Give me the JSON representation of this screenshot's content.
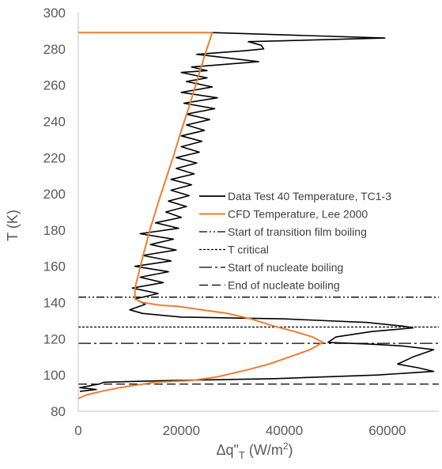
{
  "chart_data": {
    "type": "line",
    "xlabel": "Δq\"T (W/m2)",
    "ylabel": "T (K)",
    "xlim": [
      0,
      70000
    ],
    "ylim": [
      80,
      300
    ],
    "x_ticks": [
      0,
      20000,
      40000,
      60000
    ],
    "y_ticks": [
      80,
      100,
      120,
      140,
      160,
      180,
      200,
      220,
      240,
      260,
      280,
      300
    ],
    "grid": false,
    "legend_placement": "right-middle",
    "series": [
      {
        "name": "Data Test 40 Temperature, TC1-3",
        "color": "#000000",
        "style": "solid",
        "points": [
          [
            26000,
            289
          ],
          [
            59500,
            286
          ],
          [
            33000,
            284
          ],
          [
            35500,
            282
          ],
          [
            36000,
            280
          ],
          [
            32500,
            279
          ],
          [
            23000,
            277
          ],
          [
            35000,
            273
          ],
          [
            22000,
            270
          ],
          [
            25000,
            268
          ],
          [
            20000,
            267
          ],
          [
            25000,
            264
          ],
          [
            21000,
            262
          ],
          [
            26000,
            259
          ],
          [
            20000,
            256
          ],
          [
            27000,
            253
          ],
          [
            20500,
            250
          ],
          [
            26500,
            247
          ],
          [
            21000,
            244
          ],
          [
            25500,
            241
          ],
          [
            21000,
            238
          ],
          [
            24500,
            235
          ],
          [
            20000,
            232
          ],
          [
            24000,
            229
          ],
          [
            20000,
            226
          ],
          [
            23500,
            223
          ],
          [
            19000,
            220
          ],
          [
            23000,
            217
          ],
          [
            19000,
            214
          ],
          [
            22500,
            211
          ],
          [
            18000,
            208
          ],
          [
            22000,
            205
          ],
          [
            18000,
            202
          ],
          [
            21500,
            199
          ],
          [
            17500,
            196
          ],
          [
            21000,
            193
          ],
          [
            17000,
            190
          ],
          [
            20000,
            187
          ],
          [
            15000,
            184
          ],
          [
            19500,
            181
          ],
          [
            12000,
            178
          ],
          [
            18500,
            175
          ],
          [
            14000,
            172
          ],
          [
            19000,
            169
          ],
          [
            12500,
            166
          ],
          [
            18000,
            163
          ],
          [
            11000,
            160
          ],
          [
            17500,
            157
          ],
          [
            12000,
            154
          ],
          [
            16500,
            151
          ],
          [
            10500,
            148
          ],
          [
            15500,
            145
          ],
          [
            11000,
            142
          ],
          [
            13000,
            139
          ],
          [
            10000,
            136
          ],
          [
            12500,
            134
          ],
          [
            20000,
            132
          ],
          [
            40000,
            131
          ],
          [
            56000,
            129
          ],
          [
            63000,
            127
          ],
          [
            65000,
            126
          ],
          [
            57000,
            124
          ],
          [
            50000,
            121
          ],
          [
            48500,
            118
          ],
          [
            57000,
            117
          ],
          [
            63000,
            116
          ],
          [
            69000,
            114
          ],
          [
            65000,
            110
          ],
          [
            62000,
            106
          ],
          [
            66000,
            104
          ],
          [
            69000,
            102
          ],
          [
            58000,
            100
          ],
          [
            38000,
            98
          ],
          [
            18000,
            97
          ],
          [
            5000,
            96
          ],
          [
            4000,
            95
          ],
          [
            300,
            93
          ],
          [
            3500,
            92
          ],
          [
            300,
            91
          ]
        ]
      },
      {
        "name": "CFD Temperature, Lee 2000",
        "color": "#ED7D31",
        "style": "solid",
        "points": [
          [
            0,
            289
          ],
          [
            26000,
            289
          ],
          [
            24500,
            276
          ],
          [
            23000,
            262
          ],
          [
            21500,
            248
          ],
          [
            20000,
            235
          ],
          [
            18500,
            221
          ],
          [
            17000,
            208
          ],
          [
            15500,
            195
          ],
          [
            14000,
            181
          ],
          [
            12500,
            165
          ],
          [
            11000,
            148
          ],
          [
            11000,
            142
          ],
          [
            12500,
            140
          ],
          [
            16000,
            138.5
          ],
          [
            19000,
            138
          ],
          [
            24000,
            136
          ],
          [
            29000,
            134
          ],
          [
            33500,
            131
          ],
          [
            38000,
            127
          ],
          [
            42000,
            124
          ],
          [
            45500,
            121
          ],
          [
            47500,
            118
          ],
          [
            45000,
            114
          ],
          [
            41000,
            110
          ],
          [
            37000,
            106
          ],
          [
            33000,
            103
          ],
          [
            27000,
            99
          ],
          [
            22000,
            97
          ],
          [
            15000,
            96
          ],
          [
            8000,
            93
          ],
          [
            4500,
            91
          ],
          [
            1500,
            89
          ],
          [
            0,
            87
          ]
        ]
      }
    ],
    "reference_lines": [
      {
        "name": "Start of transition film boiling",
        "y": 143,
        "style": "dashdotdot",
        "color": "#000000"
      },
      {
        "name": "T critical",
        "y": 126.5,
        "style": "dotted",
        "color": "#000000"
      },
      {
        "name": "Start of nucleate boiling",
        "y": 117.5,
        "style": "longdashdot",
        "color": "#000000"
      },
      {
        "name": "End of nucleate boiling",
        "y": 95,
        "style": "dashed",
        "color": "#000000"
      }
    ],
    "legend": [
      "Data Test 40 Temperature, TC1-3",
      "CFD Temperature, Lee 2000",
      "Start of transition film boiling",
      "T critical",
      "Start of nucleate boiling",
      "End of nucleate boiling"
    ]
  }
}
